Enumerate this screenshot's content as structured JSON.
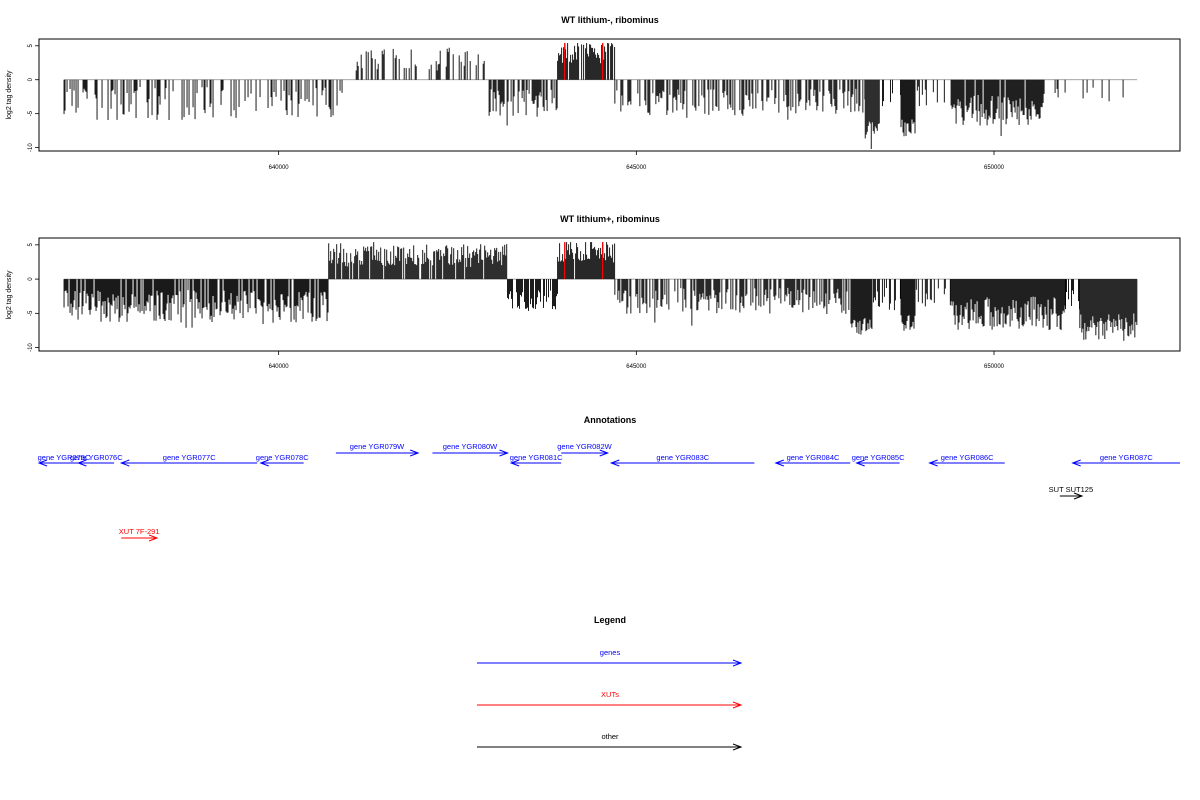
{
  "chart_data": [
    {
      "type": "bar",
      "title": "WT lithium-, ribominus",
      "ylabel": "log2 tag density",
      "xlim": [
        636650,
        652600
      ],
      "ylim": [
        -10.5,
        6
      ],
      "xticks": [
        640000,
        645000,
        650000
      ],
      "yticks": [
        5,
        0,
        -5,
        -10
      ],
      "segments": [
        {
          "start": 637000,
          "end": 641000,
          "sign": -1,
          "amp": 3.5,
          "freq": 0.35,
          "jitter": 0.7
        },
        {
          "start": 641000,
          "end": 642900,
          "sign": 1,
          "amp": 3.0,
          "freq": 0.35,
          "jitter": 0.6
        },
        {
          "start": 642900,
          "end": 643900,
          "sign": -1,
          "amp": 3.5,
          "freq": 0.6,
          "jitter": 0.6
        },
        {
          "start": 643900,
          "end": 644700,
          "sign": 1,
          "amp": 4.0,
          "freq": 0.85,
          "jitter": 0.4
        },
        {
          "start": 644700,
          "end": 648200,
          "sign": -1,
          "amp": 3.3,
          "freq": 0.55,
          "jitter": 0.6
        },
        {
          "start": 648200,
          "end": 648400,
          "sign": -1,
          "amp": 7.5,
          "freq": 1.0,
          "jitter": 0.2
        },
        {
          "start": 648400,
          "end": 648700,
          "sign": -1,
          "amp": 2.5,
          "freq": 0.2,
          "jitter": 0.6
        },
        {
          "start": 648700,
          "end": 648900,
          "sign": -1,
          "amp": 7.0,
          "freq": 1.0,
          "jitter": 0.2
        },
        {
          "start": 648900,
          "end": 649400,
          "sign": -1,
          "amp": 2.5,
          "freq": 0.3,
          "jitter": 0.6
        },
        {
          "start": 649400,
          "end": 650700,
          "sign": -1,
          "amp": 4.5,
          "freq": 0.95,
          "jitter": 0.5
        },
        {
          "start": 650700,
          "end": 652000,
          "sign": -1,
          "amp": 2.2,
          "freq": 0.1,
          "jitter": 0.5
        }
      ],
      "highlights": [
        644000,
        644530
      ],
      "highlight_color": "#ff0000"
    },
    {
      "type": "bar",
      "title": "WT lithium+, ribominus",
      "ylabel": "log2 tag density",
      "xlim": [
        636650,
        652600
      ],
      "ylim": [
        -10.5,
        6
      ],
      "xticks": [
        640000,
        645000,
        650000
      ],
      "yticks": [
        5,
        0,
        -5,
        -10
      ],
      "segments": [
        {
          "start": 637000,
          "end": 640700,
          "sign": -1,
          "amp": 4.0,
          "freq": 0.85,
          "jitter": 0.6
        },
        {
          "start": 640700,
          "end": 643200,
          "sign": 1,
          "amp": 3.5,
          "freq": 0.9,
          "jitter": 0.5
        },
        {
          "start": 643200,
          "end": 643900,
          "sign": -1,
          "amp": 3.0,
          "freq": 0.7,
          "jitter": 0.6
        },
        {
          "start": 643900,
          "end": 644700,
          "sign": 1,
          "amp": 4.0,
          "freq": 0.95,
          "jitter": 0.4
        },
        {
          "start": 644700,
          "end": 648000,
          "sign": -1,
          "amp": 3.2,
          "freq": 0.6,
          "jitter": 0.6
        },
        {
          "start": 648000,
          "end": 648300,
          "sign": -1,
          "amp": 7.0,
          "freq": 1.0,
          "jitter": 0.2
        },
        {
          "start": 648300,
          "end": 648700,
          "sign": -1,
          "amp": 3.0,
          "freq": 0.6,
          "jitter": 0.6
        },
        {
          "start": 648700,
          "end": 648900,
          "sign": -1,
          "amp": 6.5,
          "freq": 1.0,
          "jitter": 0.2
        },
        {
          "start": 648900,
          "end": 649400,
          "sign": -1,
          "amp": 2.8,
          "freq": 0.4,
          "jitter": 0.6
        },
        {
          "start": 649400,
          "end": 651000,
          "sign": -1,
          "amp": 5.0,
          "freq": 1.0,
          "jitter": 0.5
        },
        {
          "start": 651000,
          "end": 651200,
          "sign": -1,
          "amp": 2.5,
          "freq": 0.4,
          "jitter": 0.6
        },
        {
          "start": 651200,
          "end": 652000,
          "sign": -1,
          "amp": 7.0,
          "freq": 1.0,
          "jitter": 0.3
        }
      ],
      "highlights": [
        644000,
        644530
      ],
      "highlight_color": "#ff0000"
    }
  ],
  "annotations": {
    "title": "Annotations",
    "genes_color": "#0000ff",
    "xuts_color": "#ff0000",
    "other_color": "#000000",
    "features": [
      {
        "label": "gene YGR075C",
        "start": 636650,
        "end": 637350,
        "strand": "-",
        "row": 1,
        "color": "#0000ff"
      },
      {
        "label": "gene YGR076C",
        "start": 637200,
        "end": 637700,
        "strand": "-",
        "row": 1,
        "color": "#0000ff"
      },
      {
        "label": "gene YGR077C",
        "start": 637800,
        "end": 639700,
        "strand": "-",
        "row": 1,
        "color": "#0000ff"
      },
      {
        "label": "gene YGR078C",
        "start": 639750,
        "end": 640350,
        "strand": "-",
        "row": 1,
        "color": "#0000ff"
      },
      {
        "label": "gene YGR079W",
        "start": 640800,
        "end": 641950,
        "strand": "+",
        "row": 0,
        "color": "#0000ff"
      },
      {
        "label": "gene YGR080W",
        "start": 642150,
        "end": 643200,
        "strand": "+",
        "row": 0,
        "color": "#0000ff"
      },
      {
        "label": "gene YGR081C",
        "start": 643250,
        "end": 643950,
        "strand": "-",
        "row": 1,
        "color": "#0000ff"
      },
      {
        "label": "gene YGR082W",
        "start": 643950,
        "end": 644600,
        "strand": "+",
        "row": 0,
        "color": "#0000ff"
      },
      {
        "label": "gene YGR083C",
        "start": 644650,
        "end": 646650,
        "strand": "-",
        "row": 1,
        "color": "#0000ff"
      },
      {
        "label": "gene YGR084C",
        "start": 646950,
        "end": 647990,
        "strand": "-",
        "row": 1,
        "color": "#0000ff"
      },
      {
        "label": "gene YGR085C",
        "start": 648080,
        "end": 648680,
        "strand": "-",
        "row": 1,
        "color": "#0000ff"
      },
      {
        "label": "gene YGR086C",
        "start": 649100,
        "end": 650150,
        "strand": "-",
        "row": 1,
        "color": "#0000ff"
      },
      {
        "label": "gene YGR087C",
        "start": 651100,
        "end": 652600,
        "strand": "-",
        "row": 1,
        "color": "#0000ff"
      },
      {
        "label": "SUT SUT125",
        "start": 650920,
        "end": 651230,
        "strand": "+",
        "row": 2,
        "color": "#000000"
      },
      {
        "label": "XUT 7F-291",
        "start": 637800,
        "end": 638300,
        "strand": "+",
        "row": 3,
        "color": "#ff0000"
      }
    ]
  },
  "legend": {
    "title": "Legend",
    "items": [
      {
        "label": "genes",
        "color": "#0000ff"
      },
      {
        "label": "XUTs",
        "color": "#ff0000"
      },
      {
        "label": "other",
        "color": "#000000"
      }
    ]
  }
}
